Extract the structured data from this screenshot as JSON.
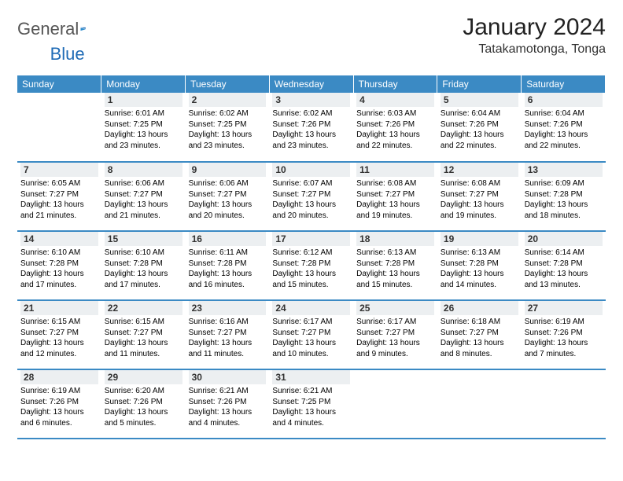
{
  "brand": {
    "name1": "General",
    "name2": "Blue"
  },
  "title": "January 2024",
  "location": "Tatakamotonga, Tonga",
  "colors": {
    "header_bg": "#3b8ac4",
    "header_text": "#ffffff",
    "daynum_bg": "#eceff1",
    "brand_blue": "#1f6bb6",
    "border": "#3b8ac4"
  },
  "day_headers": [
    "Sunday",
    "Monday",
    "Tuesday",
    "Wednesday",
    "Thursday",
    "Friday",
    "Saturday"
  ],
  "weeks": [
    [
      null,
      {
        "n": "1",
        "sr": "Sunrise: 6:01 AM",
        "ss": "Sunset: 7:25 PM",
        "d1": "Daylight: 13 hours",
        "d2": "and 23 minutes."
      },
      {
        "n": "2",
        "sr": "Sunrise: 6:02 AM",
        "ss": "Sunset: 7:25 PM",
        "d1": "Daylight: 13 hours",
        "d2": "and 23 minutes."
      },
      {
        "n": "3",
        "sr": "Sunrise: 6:02 AM",
        "ss": "Sunset: 7:26 PM",
        "d1": "Daylight: 13 hours",
        "d2": "and 23 minutes."
      },
      {
        "n": "4",
        "sr": "Sunrise: 6:03 AM",
        "ss": "Sunset: 7:26 PM",
        "d1": "Daylight: 13 hours",
        "d2": "and 22 minutes."
      },
      {
        "n": "5",
        "sr": "Sunrise: 6:04 AM",
        "ss": "Sunset: 7:26 PM",
        "d1": "Daylight: 13 hours",
        "d2": "and 22 minutes."
      },
      {
        "n": "6",
        "sr": "Sunrise: 6:04 AM",
        "ss": "Sunset: 7:26 PM",
        "d1": "Daylight: 13 hours",
        "d2": "and 22 minutes."
      }
    ],
    [
      {
        "n": "7",
        "sr": "Sunrise: 6:05 AM",
        "ss": "Sunset: 7:27 PM",
        "d1": "Daylight: 13 hours",
        "d2": "and 21 minutes."
      },
      {
        "n": "8",
        "sr": "Sunrise: 6:06 AM",
        "ss": "Sunset: 7:27 PM",
        "d1": "Daylight: 13 hours",
        "d2": "and 21 minutes."
      },
      {
        "n": "9",
        "sr": "Sunrise: 6:06 AM",
        "ss": "Sunset: 7:27 PM",
        "d1": "Daylight: 13 hours",
        "d2": "and 20 minutes."
      },
      {
        "n": "10",
        "sr": "Sunrise: 6:07 AM",
        "ss": "Sunset: 7:27 PM",
        "d1": "Daylight: 13 hours",
        "d2": "and 20 minutes."
      },
      {
        "n": "11",
        "sr": "Sunrise: 6:08 AM",
        "ss": "Sunset: 7:27 PM",
        "d1": "Daylight: 13 hours",
        "d2": "and 19 minutes."
      },
      {
        "n": "12",
        "sr": "Sunrise: 6:08 AM",
        "ss": "Sunset: 7:27 PM",
        "d1": "Daylight: 13 hours",
        "d2": "and 19 minutes."
      },
      {
        "n": "13",
        "sr": "Sunrise: 6:09 AM",
        "ss": "Sunset: 7:28 PM",
        "d1": "Daylight: 13 hours",
        "d2": "and 18 minutes."
      }
    ],
    [
      {
        "n": "14",
        "sr": "Sunrise: 6:10 AM",
        "ss": "Sunset: 7:28 PM",
        "d1": "Daylight: 13 hours",
        "d2": "and 17 minutes."
      },
      {
        "n": "15",
        "sr": "Sunrise: 6:10 AM",
        "ss": "Sunset: 7:28 PM",
        "d1": "Daylight: 13 hours",
        "d2": "and 17 minutes."
      },
      {
        "n": "16",
        "sr": "Sunrise: 6:11 AM",
        "ss": "Sunset: 7:28 PM",
        "d1": "Daylight: 13 hours",
        "d2": "and 16 minutes."
      },
      {
        "n": "17",
        "sr": "Sunrise: 6:12 AM",
        "ss": "Sunset: 7:28 PM",
        "d1": "Daylight: 13 hours",
        "d2": "and 15 minutes."
      },
      {
        "n": "18",
        "sr": "Sunrise: 6:13 AM",
        "ss": "Sunset: 7:28 PM",
        "d1": "Daylight: 13 hours",
        "d2": "and 15 minutes."
      },
      {
        "n": "19",
        "sr": "Sunrise: 6:13 AM",
        "ss": "Sunset: 7:28 PM",
        "d1": "Daylight: 13 hours",
        "d2": "and 14 minutes."
      },
      {
        "n": "20",
        "sr": "Sunrise: 6:14 AM",
        "ss": "Sunset: 7:28 PM",
        "d1": "Daylight: 13 hours",
        "d2": "and 13 minutes."
      }
    ],
    [
      {
        "n": "21",
        "sr": "Sunrise: 6:15 AM",
        "ss": "Sunset: 7:27 PM",
        "d1": "Daylight: 13 hours",
        "d2": "and 12 minutes."
      },
      {
        "n": "22",
        "sr": "Sunrise: 6:15 AM",
        "ss": "Sunset: 7:27 PM",
        "d1": "Daylight: 13 hours",
        "d2": "and 11 minutes."
      },
      {
        "n": "23",
        "sr": "Sunrise: 6:16 AM",
        "ss": "Sunset: 7:27 PM",
        "d1": "Daylight: 13 hours",
        "d2": "and 11 minutes."
      },
      {
        "n": "24",
        "sr": "Sunrise: 6:17 AM",
        "ss": "Sunset: 7:27 PM",
        "d1": "Daylight: 13 hours",
        "d2": "and 10 minutes."
      },
      {
        "n": "25",
        "sr": "Sunrise: 6:17 AM",
        "ss": "Sunset: 7:27 PM",
        "d1": "Daylight: 13 hours",
        "d2": "and 9 minutes."
      },
      {
        "n": "26",
        "sr": "Sunrise: 6:18 AM",
        "ss": "Sunset: 7:27 PM",
        "d1": "Daylight: 13 hours",
        "d2": "and 8 minutes."
      },
      {
        "n": "27",
        "sr": "Sunrise: 6:19 AM",
        "ss": "Sunset: 7:26 PM",
        "d1": "Daylight: 13 hours",
        "d2": "and 7 minutes."
      }
    ],
    [
      {
        "n": "28",
        "sr": "Sunrise: 6:19 AM",
        "ss": "Sunset: 7:26 PM",
        "d1": "Daylight: 13 hours",
        "d2": "and 6 minutes."
      },
      {
        "n": "29",
        "sr": "Sunrise: 6:20 AM",
        "ss": "Sunset: 7:26 PM",
        "d1": "Daylight: 13 hours",
        "d2": "and 5 minutes."
      },
      {
        "n": "30",
        "sr": "Sunrise: 6:21 AM",
        "ss": "Sunset: 7:26 PM",
        "d1": "Daylight: 13 hours",
        "d2": "and 4 minutes."
      },
      {
        "n": "31",
        "sr": "Sunrise: 6:21 AM",
        "ss": "Sunset: 7:25 PM",
        "d1": "Daylight: 13 hours",
        "d2": "and 4 minutes."
      },
      null,
      null,
      null
    ]
  ]
}
